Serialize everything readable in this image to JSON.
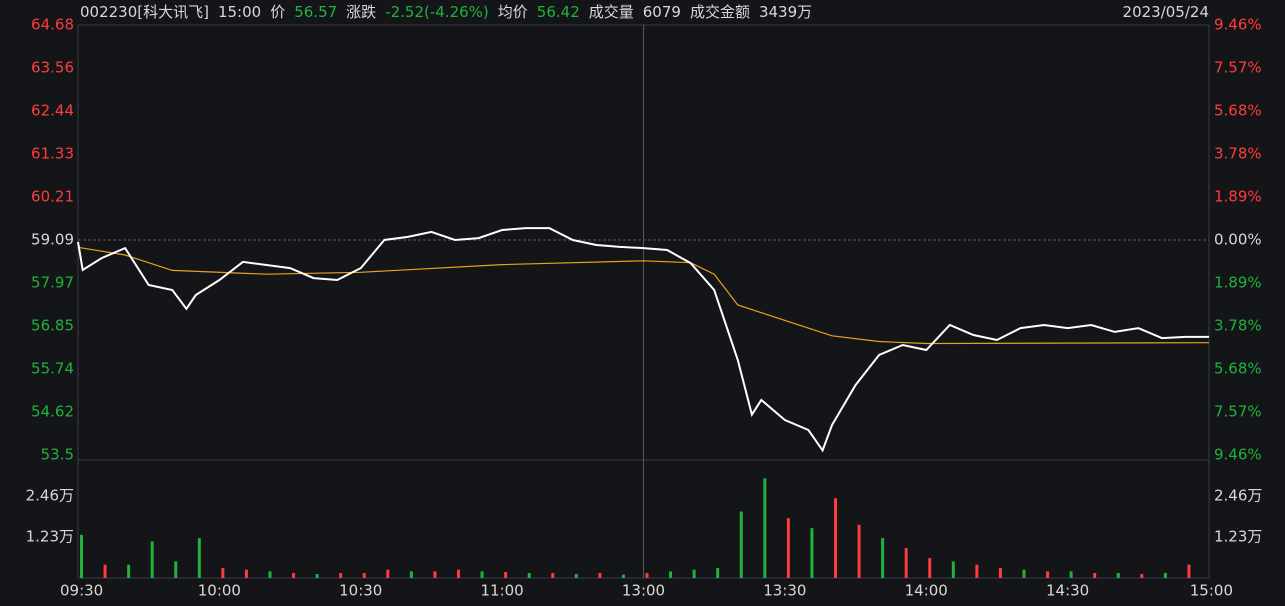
{
  "header": {
    "code": "002230[科大讯飞]",
    "time": "15:00",
    "price_label": "价",
    "price": "56.57",
    "change_label": "涨跌",
    "change": "-2.52(-4.26%)",
    "avg_label": "均价",
    "avg": "56.42",
    "volume_label": "成交量",
    "volume": "6079",
    "amount_label": "成交金额",
    "amount": "3439万",
    "date": "2023/05/24"
  },
  "chart_data": [
    {
      "type": "line",
      "xlim": [
        0,
        240
      ],
      "xticks": [
        {
          "value": 0,
          "label": "09:30"
        },
        {
          "value": 30,
          "label": "10:00"
        },
        {
          "value": 60,
          "label": "10:30"
        },
        {
          "value": 90,
          "label": "11:00"
        },
        {
          "value": 120,
          "label": "13:00"
        },
        {
          "value": 150,
          "label": "13:30"
        },
        {
          "value": 180,
          "label": "14:00"
        },
        {
          "value": 210,
          "label": "14:30"
        },
        {
          "value": 240,
          "label": "15:00"
        }
      ],
      "ylim": [
        53.5,
        64.68
      ],
      "yticks": [
        64.68,
        63.56,
        62.44,
        61.33,
        60.21,
        59.09,
        57.97,
        56.85,
        55.74,
        54.62,
        53.5
      ],
      "y2lim": [
        -9.46,
        9.46
      ],
      "y2ticks": [
        {
          "value": 9.46,
          "label": "9.46%"
        },
        {
          "value": 7.57,
          "label": "7.57%"
        },
        {
          "value": 5.68,
          "label": "5.68%"
        },
        {
          "value": 3.78,
          "label": "3.78%"
        },
        {
          "value": 1.89,
          "label": "1.89%"
        },
        {
          "value": 0,
          "label": "0.00%"
        },
        {
          "value": -1.89,
          "label": "1.89%"
        },
        {
          "value": -3.78,
          "label": "3.78%"
        },
        {
          "value": -5.68,
          "label": "5.68%"
        },
        {
          "value": -7.57,
          "label": "7.57%"
        },
        {
          "value": -9.46,
          "label": "9.46%"
        }
      ],
      "up_color": "#ff3b3b",
      "down_color": "#1fb33b",
      "flat_color": "#d8d8d8",
      "series": [
        {
          "color": "#ffffff",
          "x": [
            0,
            1,
            5,
            10,
            15,
            20,
            23,
            25,
            30,
            35,
            40,
            45,
            50,
            55,
            60,
            65,
            70,
            75,
            80,
            85,
            90,
            95,
            100,
            105,
            110,
            115,
            120,
            125,
            130,
            135,
            140,
            143,
            145,
            150,
            155,
            158,
            160,
            165,
            170,
            175,
            180,
            185,
            190,
            195,
            200,
            205,
            210,
            215,
            220,
            225,
            230,
            235,
            240
          ],
          "values": [
            59.04,
            58.31,
            58.62,
            58.88,
            57.92,
            57.79,
            57.3,
            57.66,
            58.05,
            58.52,
            58.44,
            58.36,
            58.1,
            58.05,
            58.36,
            59.09,
            59.17,
            59.3,
            59.09,
            59.14,
            59.35,
            59.4,
            59.4,
            59.09,
            58.96,
            58.91,
            58.88,
            58.83,
            58.49,
            57.79,
            55.97,
            54.55,
            54.93,
            54.41,
            54.15,
            53.62,
            54.28,
            55.32,
            56.1,
            56.36,
            56.23,
            56.88,
            56.62,
            56.49,
            56.8,
            56.88,
            56.8,
            56.88,
            56.7,
            56.8,
            56.54,
            56.57,
            56.57
          ]
        },
        {
          "color": "#e8a21c",
          "x": [
            0,
            10,
            20,
            40,
            60,
            90,
            120,
            130,
            135,
            140,
            150,
            160,
            170,
            180,
            240
          ],
          "values": [
            58.9,
            58.7,
            58.3,
            58.2,
            58.25,
            58.45,
            58.55,
            58.5,
            58.2,
            57.4,
            57.0,
            56.6,
            56.45,
            56.4,
            56.42
          ]
        }
      ]
    },
    {
      "type": "bar",
      "xlim": [
        0,
        240
      ],
      "ylim": [
        0,
        34000
      ],
      "yticks": [
        {
          "value": 12300,
          "label": "1.23万"
        },
        {
          "value": 24600,
          "label": "2.46万"
        }
      ],
      "x": [
        0,
        5,
        10,
        15,
        20,
        25,
        30,
        35,
        40,
        45,
        50,
        55,
        60,
        65,
        70,
        75,
        80,
        85,
        90,
        95,
        100,
        105,
        110,
        115,
        120,
        125,
        130,
        135,
        140,
        145,
        150,
        155,
        160,
        165,
        170,
        175,
        180,
        185,
        190,
        195,
        200,
        205,
        210,
        215,
        220,
        225,
        230,
        235
      ],
      "values": [
        13000,
        4000,
        4000,
        11000,
        5000,
        12000,
        3000,
        2500,
        2000,
        1500,
        1200,
        1500,
        1500,
        2500,
        2000,
        2000,
        2500,
        2000,
        1800,
        1500,
        1500,
        1200,
        1500,
        1000,
        1500,
        2000,
        2500,
        3000,
        20000,
        30000,
        18000,
        15000,
        24000,
        16000,
        12000,
        9000,
        6000,
        5000,
        4000,
        3000,
        2500,
        2000,
        2000,
        1500,
        1500,
        1200,
        1500,
        4000
      ],
      "colors": [
        "#1fb33b",
        "#ff3b3b",
        "#1fb33b",
        "#1fb33b",
        "#1fb33b",
        "#1fb33b",
        "#ff3b3b",
        "#ff3b3b",
        "#1fb33b",
        "#ff3b3b",
        "#1fb33b",
        "#ff3b3b",
        "#ff3b3b",
        "#ff3b3b",
        "#1fb33b",
        "#ff3b3b",
        "#ff3b3b",
        "#1fb33b",
        "#ff3b3b",
        "#1fb33b",
        "#ff3b3b",
        "#1fb33b",
        "#ff3b3b",
        "#1fb33b",
        "#ff3b3b",
        "#1fb33b",
        "#1fb33b",
        "#1fb33b",
        "#1fb33b",
        "#1fb33b",
        "#ff3b3b",
        "#1fb33b",
        "#ff3b3b",
        "#ff3b3b",
        "#1fb33b",
        "#ff3b3b",
        "#ff3b3b",
        "#1fb33b",
        "#ff3b3b",
        "#ff3b3b",
        "#1fb33b",
        "#ff3b3b",
        "#1fb33b",
        "#ff3b3b",
        "#1fb33b",
        "#ff3b3b",
        "#1fb33b",
        "#ff3b3b"
      ]
    }
  ]
}
